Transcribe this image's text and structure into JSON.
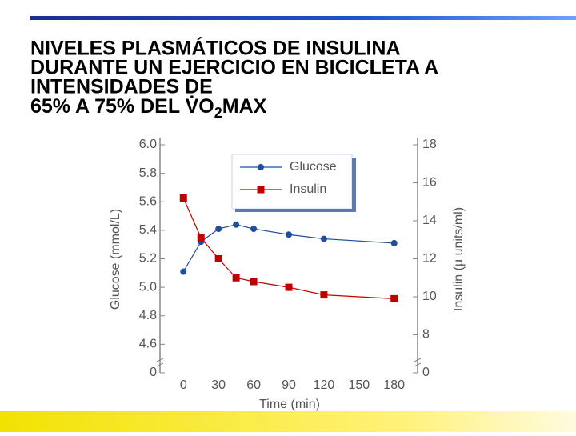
{
  "chart_data": {
    "type": "line",
    "title_lines": [
      "NIVELES PLASMÁTICOS DE INSULINA",
      "DURANTE UN EJERCICIO EN BICICLETA A",
      "INTENSIDADES DE"
    ],
    "title_last": [
      "65% A 75% DEL V̇O",
      "2",
      "MAX"
    ],
    "x_label": "Time (min)",
    "y_label": "Glucose (mmol/L)",
    "y2_label": "Insulin (µ units/ml)",
    "x": [
      0,
      15,
      30,
      45,
      60,
      90,
      120,
      180
    ],
    "xlim": [
      -20,
      200
    ],
    "xticks": [
      0,
      30,
      60,
      90,
      120,
      150,
      180
    ],
    "ylim": [
      0,
      6.0
    ],
    "ybreak": [
      0,
      4.4
    ],
    "yticks": [
      0,
      4.6,
      4.8,
      {
        "value": 5.0,
        "label": "5.0"
      },
      5.2,
      5.4,
      5.6,
      5.8,
      {
        "value": 6.0,
        "label": "6.0"
      }
    ],
    "y2lim": [
      0,
      18
    ],
    "y2break": [
      0,
      6
    ],
    "y2ticks": [
      0,
      8,
      10,
      12,
      14,
      16,
      18
    ],
    "legend": "upper center",
    "series": [
      {
        "name": "Glucose",
        "color": "#1f4e9c",
        "marker": "circle",
        "values": [
          5.11,
          5.32,
          5.41,
          5.44,
          5.41,
          5.37,
          5.34,
          5.31
        ]
      },
      {
        "name": "Insulin",
        "color": "#c00000",
        "marker": "square",
        "axis": "y2",
        "values": [
          15.2,
          13.1,
          12.0,
          11.0,
          10.8,
          10.5,
          10.1,
          9.9
        ]
      }
    ]
  }
}
